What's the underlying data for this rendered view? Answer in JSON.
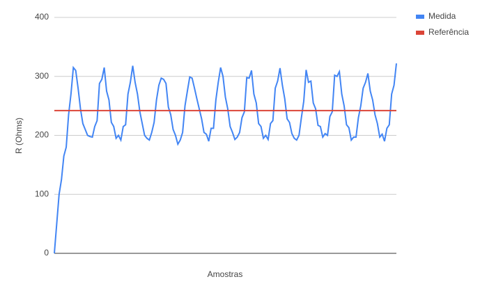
{
  "chart_data": {
    "type": "line",
    "xlabel": "Amostras",
    "ylabel": "R (Ohms)",
    "ylim": [
      0,
      400
    ],
    "yticks": [
      0,
      100,
      200,
      300,
      400
    ],
    "grid": true,
    "legend": "right",
    "series": [
      {
        "name": "Medida",
        "color": "#4285f4",
        "values": [
          0,
          50,
          100,
          125,
          165,
          180,
          235,
          270,
          315,
          310,
          280,
          245,
          220,
          210,
          200,
          198,
          197,
          215,
          225,
          288,
          295,
          315,
          275,
          260,
          222,
          215,
          195,
          200,
          192,
          215,
          218,
          270,
          290,
          318,
          290,
          270,
          240,
          220,
          200,
          195,
          192,
          205,
          222,
          260,
          285,
          297,
          295,
          288,
          248,
          235,
          210,
          200,
          185,
          192,
          205,
          250,
          275,
          299,
          297,
          280,
          262,
          245,
          228,
          205,
          202,
          190,
          212,
          212,
          260,
          290,
          315,
          300,
          265,
          245,
          215,
          205,
          193,
          197,
          205,
          230,
          240,
          298,
          297,
          310,
          270,
          255,
          220,
          215,
          195,
          200,
          193,
          220,
          225,
          280,
          292,
          314,
          285,
          262,
          228,
          222,
          203,
          195,
          192,
          200,
          230,
          258,
          311,
          290,
          292,
          255,
          245,
          217,
          215,
          197,
          203,
          200,
          232,
          240,
          302,
          300,
          308,
          270,
          250,
          218,
          213,
          192,
          197,
          197,
          230,
          250,
          280,
          290,
          305,
          275,
          260,
          235,
          220,
          197,
          202,
          190,
          212,
          218,
          270,
          285,
          322
        ]
      },
      {
        "name": "Referência",
        "color": "#db4437",
        "values": [
          242,
          242,
          242,
          242,
          242,
          242,
          242,
          242,
          242,
          242,
          242,
          242,
          242,
          242,
          242,
          242,
          242,
          242,
          242,
          242,
          242,
          242,
          242,
          242,
          242,
          242,
          242,
          242,
          242,
          242,
          242,
          242,
          242,
          242,
          242,
          242,
          242,
          242,
          242,
          242,
          242,
          242,
          242,
          242,
          242,
          242,
          242,
          242,
          242,
          242,
          242,
          242,
          242,
          242,
          242,
          242,
          242,
          242,
          242,
          242,
          242,
          242,
          242,
          242,
          242,
          242,
          242,
          242,
          242,
          242,
          242,
          242,
          242,
          242,
          242,
          242,
          242,
          242,
          242,
          242,
          242,
          242,
          242,
          242,
          242,
          242,
          242,
          242,
          242,
          242,
          242,
          242,
          242,
          242,
          242,
          242,
          242,
          242,
          242,
          242,
          242,
          242,
          242,
          242,
          242,
          242,
          242,
          242,
          242,
          242,
          242,
          242,
          242,
          242,
          242,
          242,
          242,
          242,
          242,
          242,
          242,
          242,
          242,
          242,
          242,
          242,
          242,
          242,
          242,
          242,
          242,
          242,
          242,
          242,
          242,
          242,
          242,
          242,
          242,
          242,
          242,
          242,
          242,
          242,
          242
        ]
      }
    ]
  }
}
